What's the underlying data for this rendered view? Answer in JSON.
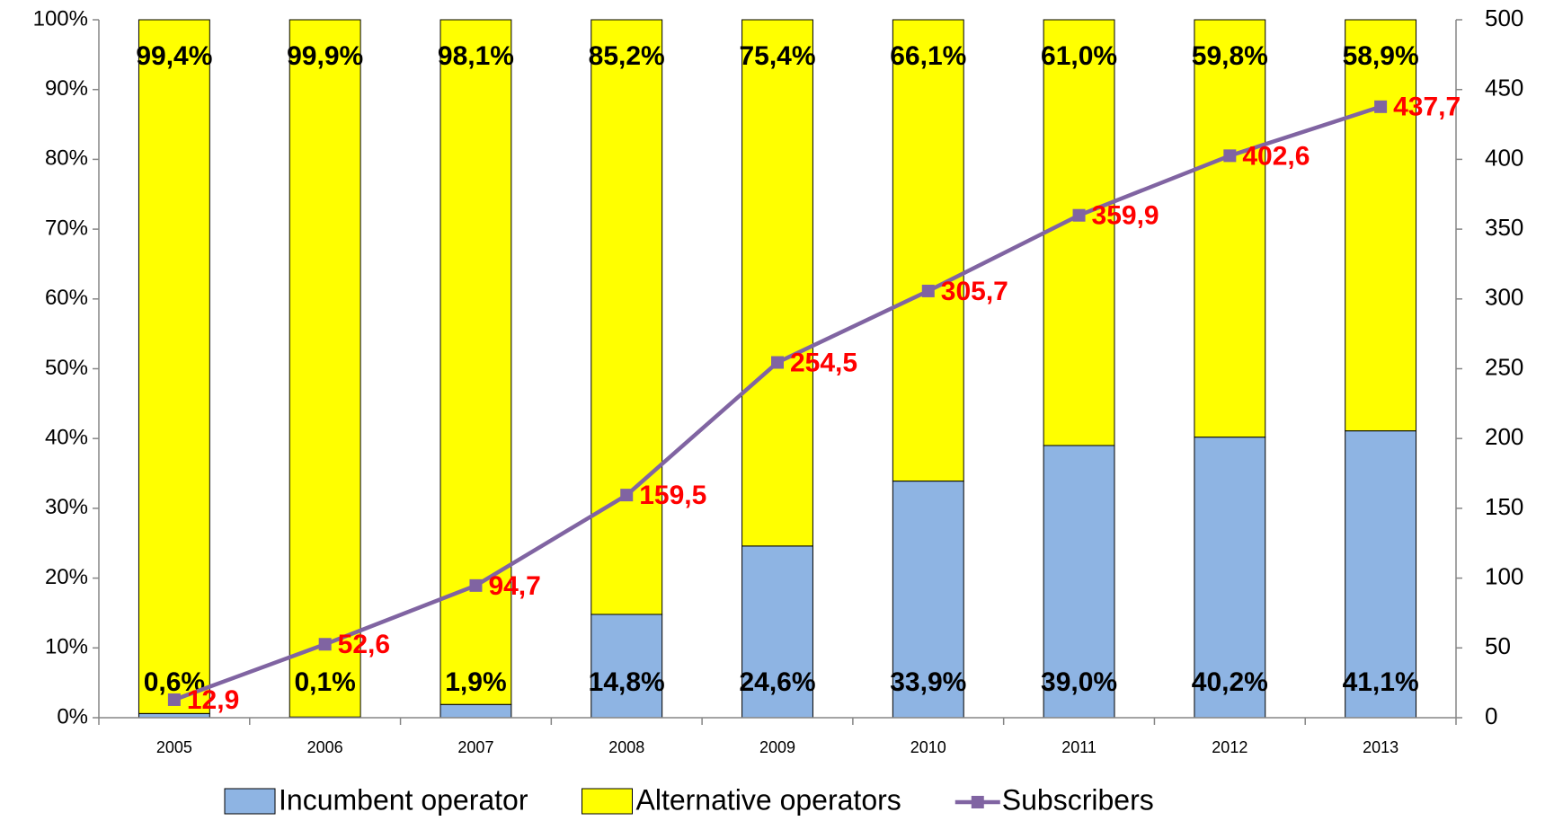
{
  "chart_data": {
    "type": "bar",
    "stacked": true,
    "categories": [
      "2005",
      "2006",
      "2007",
      "2008",
      "2009",
      "2010",
      "2011",
      "2012",
      "2013"
    ],
    "series": [
      {
        "name": "Incumbent operator",
        "color": "#8eb4e3",
        "values": [
          0.6,
          0.1,
          1.9,
          14.8,
          24.6,
          33.9,
          39.0,
          40.2,
          41.1
        ],
        "value_labels": [
          "0,6%",
          "0,1%",
          "1,9%",
          "14,8%",
          "24,6%",
          "33,9%",
          "39,0%",
          "40,2%",
          "41,1%"
        ]
      },
      {
        "name": "Alternative operators",
        "color": "#ffff00",
        "values": [
          99.4,
          99.9,
          98.1,
          85.2,
          75.4,
          66.1,
          61.0,
          59.8,
          58.9
        ],
        "value_labels": [
          "99,4%",
          "99,9%",
          "98,1%",
          "85,2%",
          "75,4%",
          "66,1%",
          "61,0%",
          "59,8%",
          "58,9%"
        ]
      },
      {
        "name": "Subscribers",
        "color": "#8064a2",
        "type": "line",
        "axis": "y2",
        "values": [
          12.9,
          52.6,
          94.7,
          159.5,
          254.5,
          305.7,
          359.9,
          402.6,
          437.7
        ],
        "value_labels": [
          "12,9",
          "52,6",
          "94,7",
          "159,5",
          "254,5",
          "305,7",
          "359,9",
          "402,6",
          "437,7"
        ]
      }
    ],
    "ylim": [
      0,
      100
    ],
    "yticks": [
      {
        "value": 0,
        "label": "0%"
      },
      {
        "value": 10,
        "label": "10%"
      },
      {
        "value": 20,
        "label": "20%"
      },
      {
        "value": 30,
        "label": "30%"
      },
      {
        "value": 40,
        "label": "40%"
      },
      {
        "value": 50,
        "label": "50%"
      },
      {
        "value": 60,
        "label": "60%"
      },
      {
        "value": 70,
        "label": "70%"
      },
      {
        "value": 80,
        "label": "80%"
      },
      {
        "value": 90,
        "label": "90%"
      },
      {
        "value": 100,
        "label": "100%"
      }
    ],
    "y2lim": [
      0,
      500
    ],
    "y2ticks": [
      0,
      50,
      100,
      150,
      200,
      250,
      300,
      350,
      400,
      450,
      500
    ],
    "legend": "bottom",
    "grid": false
  }
}
